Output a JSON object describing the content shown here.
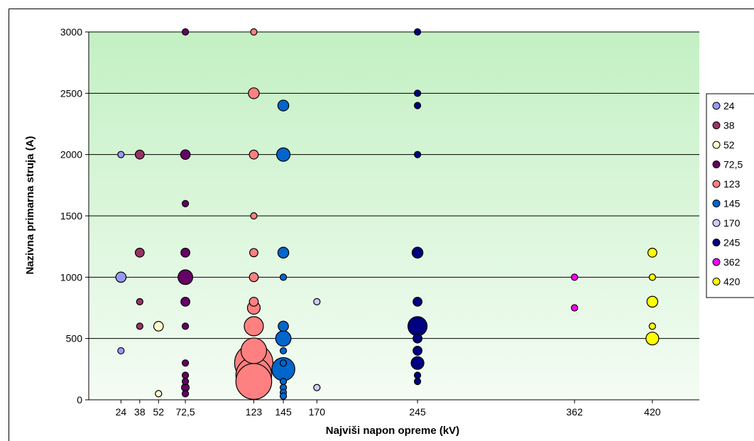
{
  "chart_data": {
    "type": "scatter",
    "subtype": "bubble",
    "title": "",
    "xlabel": "Najviši napon opreme (kV)",
    "ylabel": "Nazivna primarna struja (A)",
    "ylim": [
      0,
      3000
    ],
    "y_ticks": [
      0,
      500,
      1000,
      1500,
      2000,
      2500,
      3000
    ],
    "x_ticks": [
      24,
      38,
      52,
      72,
      123,
      145,
      170,
      245,
      362,
      420
    ],
    "x_tick_labels": [
      "24",
      "38",
      "52",
      "72,5",
      "123",
      "145",
      "170",
      "245",
      "362",
      "420"
    ],
    "grid": "horizontal",
    "background": "gradient green",
    "legend_position": "right",
    "series": [
      {
        "name": "24",
        "color": "#9999ff",
        "x": 24,
        "points": [
          [
            2000,
            1
          ],
          [
            1000,
            1.6
          ],
          [
            400,
            1
          ]
        ]
      },
      {
        "name": "38",
        "color": "#993366",
        "x": 38,
        "points": [
          [
            2000,
            1.4
          ],
          [
            1200,
            1.4
          ],
          [
            800,
            1
          ],
          [
            600,
            1
          ]
        ]
      },
      {
        "name": "52",
        "color": "#ffffcc",
        "x": 52,
        "points": [
          [
            600,
            1.5
          ],
          [
            50,
            1
          ]
        ]
      },
      {
        "name": "72,5",
        "color": "#660066",
        "x": 72,
        "points": [
          [
            3000,
            1
          ],
          [
            2000,
            1.5
          ],
          [
            1600,
            1
          ],
          [
            1200,
            1.4
          ],
          [
            1000,
            2.3
          ],
          [
            800,
            1.4
          ],
          [
            600,
            1
          ],
          [
            300,
            1
          ],
          [
            200,
            1
          ],
          [
            150,
            1
          ],
          [
            100,
            1.2
          ],
          [
            50,
            1
          ]
        ]
      },
      {
        "name": "123",
        "color": "#ff8080",
        "x": 123,
        "points": [
          [
            3000,
            1
          ],
          [
            2500,
            1.7
          ],
          [
            2000,
            1.4
          ],
          [
            1500,
            1
          ],
          [
            1200,
            1.3
          ],
          [
            1000,
            1.4
          ],
          [
            800,
            1.4
          ],
          [
            750,
            2
          ],
          [
            600,
            3
          ],
          [
            400,
            4
          ],
          [
            300,
            6
          ],
          [
            200,
            5.6
          ],
          [
            150,
            5.6
          ]
        ]
      },
      {
        "name": "145",
        "color": "#0066cc",
        "x": 145,
        "points": [
          [
            2400,
            1.7
          ],
          [
            2000,
            2.1
          ],
          [
            1200,
            1.7
          ],
          [
            1000,
            1
          ],
          [
            600,
            1.6
          ],
          [
            500,
            2.4
          ],
          [
            400,
            1
          ],
          [
            300,
            1
          ],
          [
            250,
            3.6
          ],
          [
            150,
            1
          ],
          [
            100,
            1
          ],
          [
            60,
            1
          ],
          [
            30,
            1
          ]
        ]
      },
      {
        "name": "170",
        "color": "#ccccff",
        "x": 170,
        "points": [
          [
            800,
            1
          ],
          [
            100,
            1
          ]
        ]
      },
      {
        "name": "245",
        "color": "#000080",
        "x": 245,
        "points": [
          [
            3000,
            1
          ],
          [
            2500,
            1
          ],
          [
            2400,
            1
          ],
          [
            2000,
            1
          ],
          [
            1200,
            1.7
          ],
          [
            800,
            1.4
          ],
          [
            600,
            3
          ],
          [
            500,
            1.4
          ],
          [
            400,
            1.4
          ],
          [
            300,
            2
          ],
          [
            200,
            1
          ],
          [
            150,
            1
          ]
        ]
      },
      {
        "name": "362",
        "color": "#ff00ff",
        "x": 362,
        "points": [
          [
            1000,
            1
          ],
          [
            750,
            1
          ]
        ]
      },
      {
        "name": "420",
        "color": "#ffff00",
        "x": 420,
        "points": [
          [
            1200,
            1.4
          ],
          [
            1000,
            1
          ],
          [
            800,
            1.7
          ],
          [
            600,
            1
          ],
          [
            500,
            2
          ]
        ]
      }
    ]
  }
}
